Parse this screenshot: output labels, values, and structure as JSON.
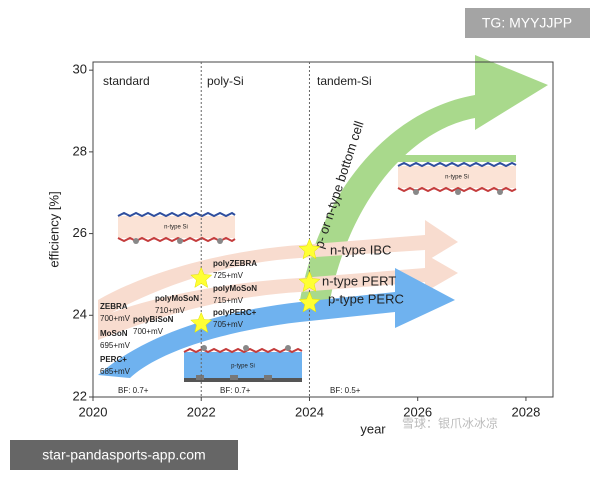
{
  "chart_data": {
    "type": "scatter",
    "xlabel": "year",
    "ylabel": "efficiency [%]",
    "xlim": [
      2020,
      2028.5
    ],
    "ylim": [
      22,
      30.2
    ],
    "xticks": [
      2020,
      2022,
      2024,
      2026,
      2028
    ],
    "yticks": [
      22,
      24,
      26,
      28,
      30
    ],
    "x": [
      2022,
      2022,
      2024,
      2024,
      2024
    ],
    "values": [
      24.9,
      23.8,
      25.6,
      24.8,
      24.3
    ],
    "color": "#ffff33",
    "sections": [
      "standard",
      "poly-Si",
      "tandem-Si"
    ],
    "section_dividers": [
      2022,
      2024
    ],
    "bf_labels": [
      "BF: 0.7+",
      "BF: 0.7+",
      "BF: 0.5+"
    ],
    "cells": [
      [
        "ZEBRA",
        "700+mV"
      ],
      [
        "MoSoN",
        "695+mV"
      ],
      [
        "PERC+",
        "685+mV"
      ],
      [
        "polyBiSoN",
        "700+mV"
      ],
      [
        "polyMoSoN",
        "710+mV"
      ],
      [
        "polyZEBRA",
        "725+mV"
      ],
      [
        "polyMoSoN",
        "715+mV"
      ],
      [
        "polyPERC+",
        "705+mV"
      ]
    ],
    "trends": [
      "n-type IBC",
      "n-type PERT",
      "p-type PERC",
      "p- or n-type bottom cell"
    ],
    "devices": [
      "n-type Si",
      "n-type Si",
      "p-type Si"
    ]
  },
  "watermarks": [
    "TG: MYYJJPP",
    "star-pandasports-app.com",
    "雪球：银爪冰冰凉"
  ]
}
